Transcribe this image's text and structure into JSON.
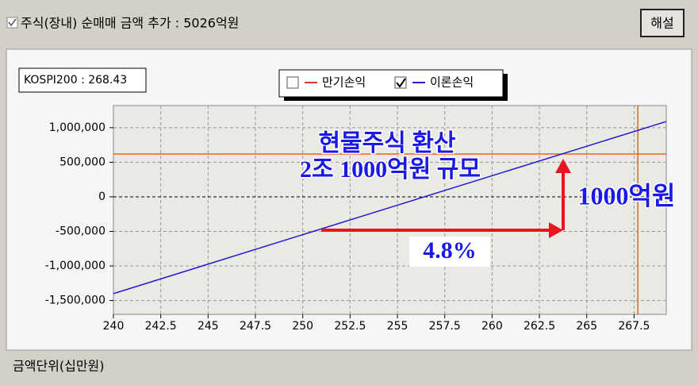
{
  "header": {
    "checkbox_label": "주식(장내) 순매매 금액 추가 : 5026억원",
    "button": "해설"
  },
  "chart_data": {
    "type": "line",
    "index_label": "KOSPI200 : 268.43",
    "x": [
      240,
      269.2
    ],
    "series": [
      {
        "name": "만기손익",
        "color": "#e03a1e",
        "checked": false
      },
      {
        "name": "이론손익",
        "color": "#1c1cd0",
        "checked": true,
        "values": [
          -1400000,
          1090000
        ]
      }
    ],
    "xlim": [
      240,
      269.2
    ],
    "xticks": [
      240,
      242.5,
      245,
      247.5,
      250,
      252.5,
      255,
      257.5,
      260,
      262.5,
      265,
      267.5
    ],
    "ylim": [
      -1700000,
      1320000
    ],
    "yticks": [
      {
        "value": -1500000,
        "label": "-1,500,000"
      },
      {
        "value": -1000000,
        "label": "-1,000,000"
      },
      {
        "value": -500000,
        "label": "-500,000"
      },
      0,
      {
        "value": 500000,
        "label": "500,000"
      },
      {
        "value": 1000000,
        "label": "1,000,000"
      }
    ],
    "grid": true,
    "reference_lines": {
      "x": 267.7,
      "y": 620000,
      "color": "#e8641e"
    },
    "annotations": [
      "현물주식 환산",
      "2조 1000억원 규모",
      "1000억원",
      "4.8%"
    ]
  },
  "footer": "금액단위(십만원)"
}
